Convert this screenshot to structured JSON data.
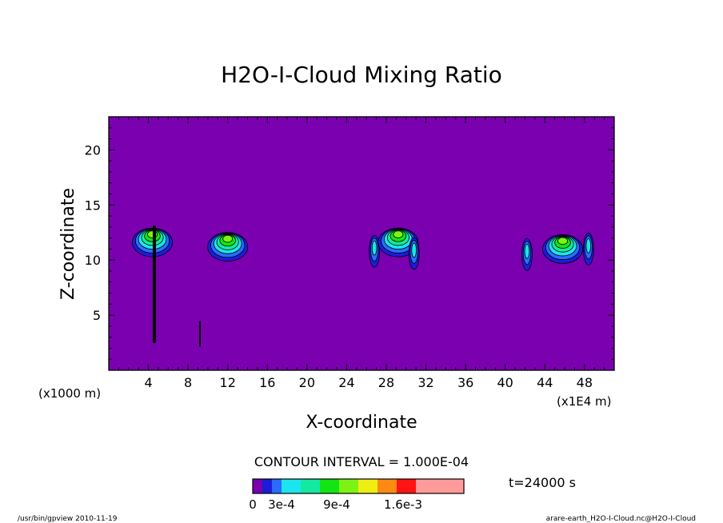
{
  "chart_data": {
    "type": "contour",
    "title": "H2O-I-Cloud Mixing Ratio",
    "xlabel": "X-coordinate",
    "ylabel": "Z-coordinate",
    "x_unit_left": "(x1000 m)",
    "x_unit_right": "(x1E4 m)",
    "xlim": [
      0,
      51
    ],
    "ylim": [
      0,
      23
    ],
    "x_ticks": [
      4,
      8,
      12,
      16,
      20,
      24,
      28,
      32,
      36,
      40,
      44,
      48
    ],
    "y_ticks": [
      5,
      10,
      15,
      20
    ],
    "background_color": "#7a00b0",
    "contour_interval_text": "CONTOUR INTERVAL = 1.000E-04",
    "time_text": "t=24000 s",
    "colorbar": {
      "colors": [
        "#7a00b0",
        "#1c1cd8",
        "#2a6cff",
        "#19e6ee",
        "#13e9a0",
        "#13e413",
        "#7df313",
        "#eeee13",
        "#ff8a13",
        "#ff1313",
        "#ff9b9b"
      ],
      "labels": [
        "0",
        "3e-4",
        "9e-4",
        "1.6e-3"
      ]
    },
    "clouds": [
      {
        "x": 4.4,
        "z": 11.6,
        "level": 6
      },
      {
        "x": 12.0,
        "z": 11.2,
        "level": 6
      },
      {
        "x": 26.8,
        "z": 10.8,
        "level": 3
      },
      {
        "x": 29.2,
        "z": 11.6,
        "level": 6
      },
      {
        "x": 30.8,
        "z": 10.6,
        "level": 3
      },
      {
        "x": 42.2,
        "z": 10.5,
        "level": 3
      },
      {
        "x": 45.8,
        "z": 11.0,
        "level": 6
      },
      {
        "x": 48.4,
        "z": 11.0,
        "level": 3
      }
    ]
  },
  "footer": {
    "left": "/usr/bin/gpview  2010-11-19",
    "right": "arare-earth_H2O-I-Cloud.nc@H2O-I-Cloud"
  }
}
